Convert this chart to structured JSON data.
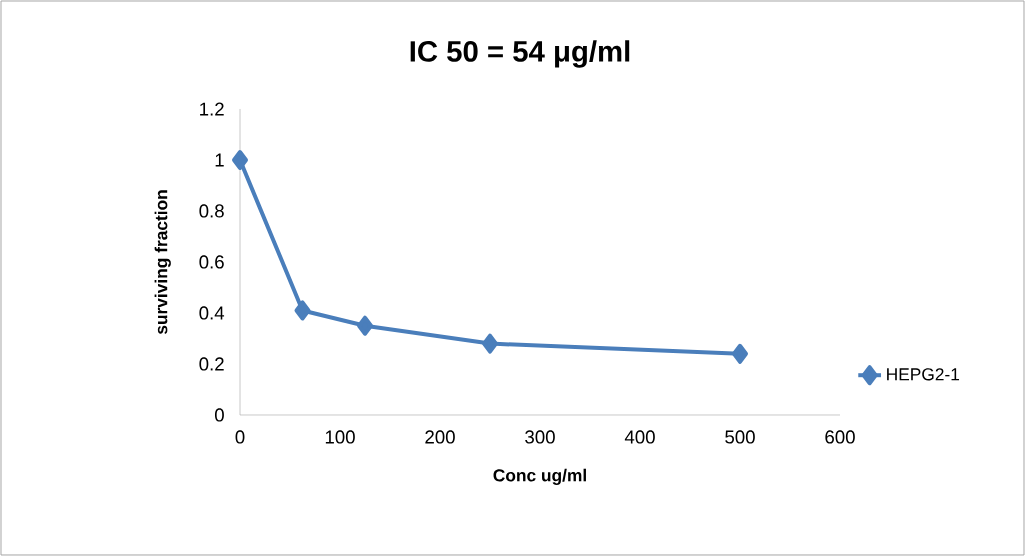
{
  "chart_data": {
    "type": "line",
    "title": "IC 50 = 54 μg/ml",
    "xlabel": "Conc ug/ml",
    "ylabel": "surviving fraction",
    "x": [
      0,
      62.5,
      125,
      250,
      500
    ],
    "series": [
      {
        "name": "HEPG2-1",
        "color": "#4a7ebb",
        "values": [
          1,
          0.41,
          0.35,
          0.28,
          0.24
        ]
      }
    ],
    "xlim": [
      0,
      600
    ],
    "xticks": [
      0,
      100,
      200,
      300,
      400,
      500,
      600
    ],
    "ylim": [
      0,
      1.2
    ],
    "yticks": [
      0,
      0.2,
      0.4,
      0.6,
      0.8,
      1,
      1.2
    ],
    "grid": false,
    "legend": "right",
    "marker": "diamond",
    "line_style": "solid"
  }
}
